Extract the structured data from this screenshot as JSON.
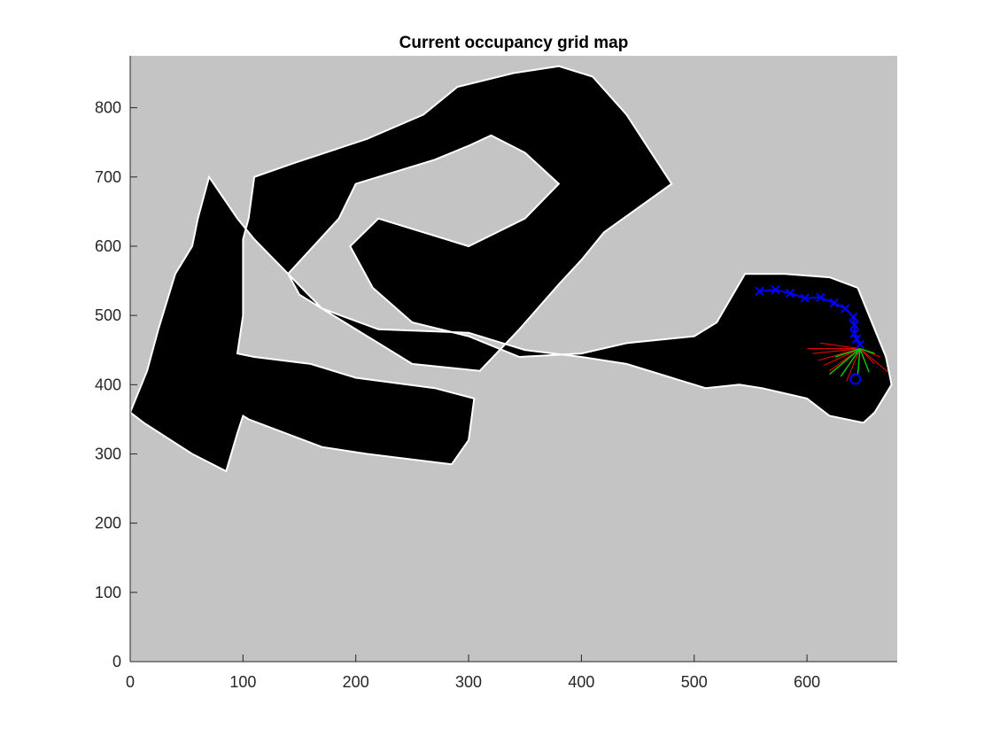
{
  "chart_data": {
    "type": "heatmap",
    "title": "Current occupancy grid map",
    "xlabel": "",
    "ylabel": "",
    "xlim": [
      0,
      680
    ],
    "ylim": [
      0,
      875
    ],
    "x_ticks": [
      0,
      100,
      200,
      300,
      400,
      500,
      600
    ],
    "y_ticks": [
      0,
      100,
      200,
      300,
      400,
      500,
      600,
      700,
      800
    ],
    "grid": false,
    "colors": {
      "unknown": "#c4c4c4",
      "free": "#000000",
      "obstacle": "#ffffff",
      "path": "#0000ff",
      "sensor_hit": "#ff0000",
      "sensor_free": "#00c800",
      "axes": "#262626"
    },
    "explored_regions": [
      {
        "name": "main-corridor",
        "polygon": [
          [
            0,
            360
          ],
          [
            12,
            345
          ],
          [
            55,
            300
          ],
          [
            85,
            275
          ],
          [
            95,
            330
          ],
          [
            100,
            355
          ],
          [
            105,
            350
          ],
          [
            170,
            310
          ],
          [
            210,
            300
          ],
          [
            285,
            285
          ],
          [
            300,
            320
          ],
          [
            305,
            380
          ],
          [
            270,
            395
          ],
          [
            200,
            410
          ],
          [
            160,
            430
          ],
          [
            110,
            440
          ],
          [
            95,
            445
          ],
          [
            100,
            500
          ],
          [
            100,
            610
          ],
          [
            105,
            640
          ],
          [
            110,
            700
          ],
          [
            145,
            720
          ],
          [
            210,
            755
          ],
          [
            260,
            790
          ],
          [
            290,
            830
          ],
          [
            340,
            850
          ],
          [
            380,
            860
          ],
          [
            410,
            845
          ],
          [
            440,
            790
          ],
          [
            460,
            740
          ],
          [
            480,
            690
          ],
          [
            420,
            620
          ],
          [
            400,
            580
          ],
          [
            380,
            545
          ],
          [
            345,
            480
          ],
          [
            310,
            420
          ],
          [
            250,
            430
          ],
          [
            220,
            460
          ],
          [
            150,
            530
          ],
          [
            140,
            560
          ],
          [
            185,
            640
          ],
          [
            200,
            690
          ],
          [
            270,
            725
          ],
          [
            300,
            745
          ],
          [
            320,
            760
          ],
          [
            350,
            735
          ],
          [
            380,
            690
          ],
          [
            350,
            640
          ],
          [
            300,
            600
          ],
          [
            220,
            640
          ],
          [
            195,
            600
          ],
          [
            215,
            540
          ],
          [
            250,
            490
          ],
          [
            300,
            470
          ],
          [
            345,
            440
          ],
          [
            400,
            445
          ],
          [
            440,
            460
          ],
          [
            500,
            470
          ],
          [
            520,
            490
          ],
          [
            545,
            560
          ],
          [
            580,
            560
          ],
          [
            620,
            555
          ],
          [
            645,
            540
          ],
          [
            670,
            440
          ],
          [
            675,
            400
          ],
          [
            660,
            360
          ],
          [
            650,
            345
          ],
          [
            620,
            355
          ],
          [
            600,
            380
          ],
          [
            560,
            395
          ],
          [
            540,
            400
          ],
          [
            510,
            395
          ],
          [
            480,
            410
          ],
          [
            440,
            430
          ],
          [
            400,
            440
          ],
          [
            350,
            450
          ],
          [
            300,
            475
          ],
          [
            220,
            480
          ],
          [
            170,
            510
          ],
          [
            140,
            560
          ],
          [
            110,
            610
          ],
          [
            95,
            640
          ],
          [
            70,
            700
          ],
          [
            60,
            640
          ],
          [
            55,
            600
          ],
          [
            40,
            560
          ],
          [
            25,
            480
          ],
          [
            15,
            420
          ],
          [
            5,
            380
          ]
        ]
      }
    ],
    "robot_path": {
      "name": "trajectory",
      "x": [
        558,
        572,
        585,
        598,
        612,
        624,
        634,
        641,
        642,
        642,
        644,
        647
      ],
      "y": [
        535,
        537,
        532,
        525,
        526,
        518,
        510,
        498,
        486,
        474,
        466,
        458
      ]
    },
    "robot_position": {
      "x": 643,
      "y": 408
    },
    "laser_hits": [
      [
        600,
        452
      ],
      [
        605,
        445
      ],
      [
        610,
        435
      ],
      [
        615,
        428
      ],
      [
        620,
        420
      ],
      [
        635,
        405
      ],
      [
        660,
        430
      ],
      [
        672,
        418
      ],
      [
        665,
        440
      ],
      [
        612,
        460
      ]
    ],
    "laser_free": [
      [
        620,
        415
      ],
      [
        630,
        412
      ],
      [
        645,
        415
      ],
      [
        655,
        418
      ],
      [
        625,
        440
      ],
      [
        660,
        445
      ]
    ],
    "laser_origin": {
      "x": 647,
      "y": 452
    }
  }
}
